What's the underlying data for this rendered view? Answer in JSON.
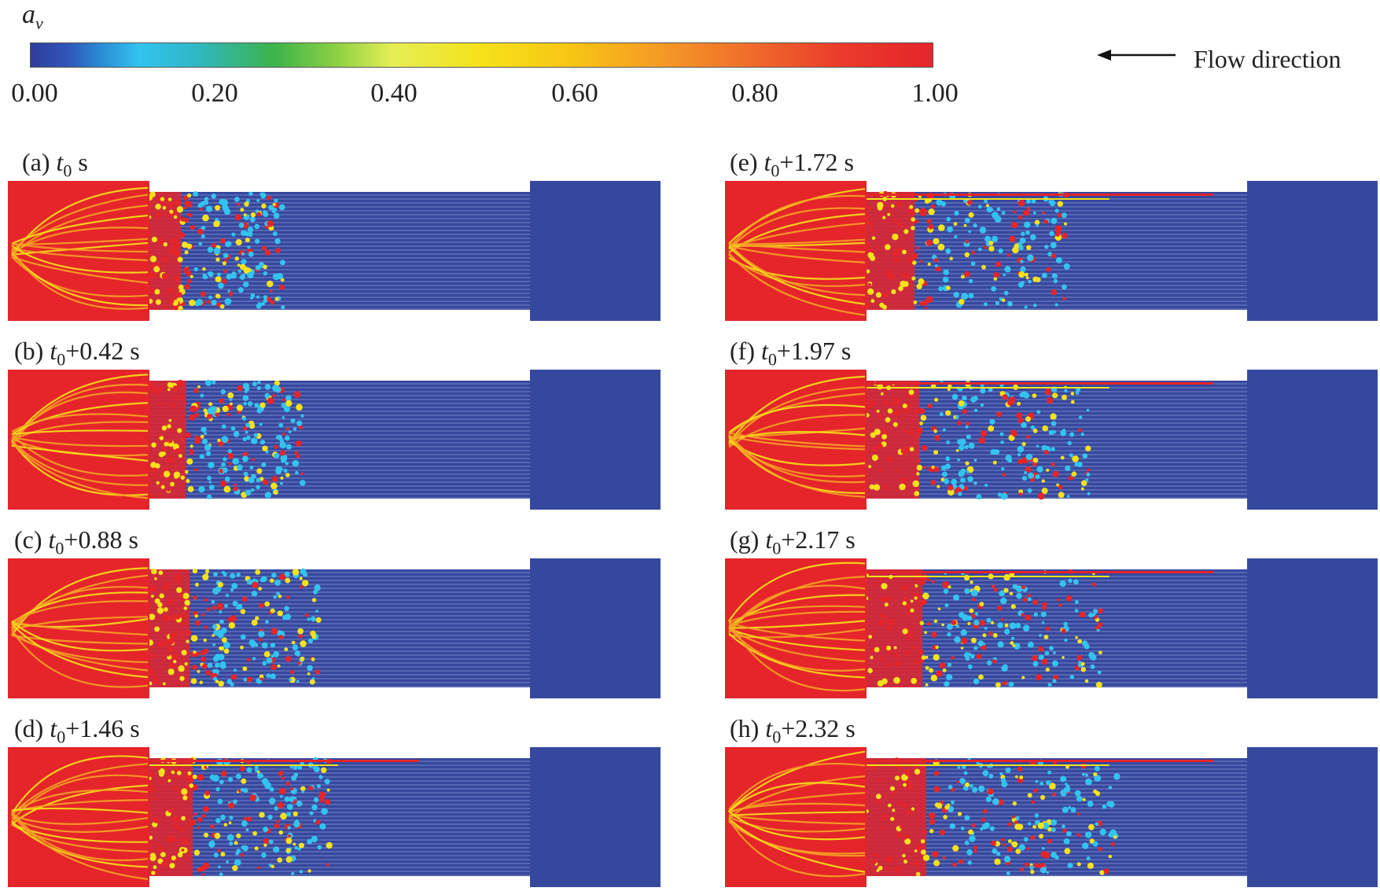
{
  "colorbar": {
    "variable": "a",
    "subscript": "v",
    "ticks": [
      "0.00",
      "0.20",
      "0.40",
      "0.60",
      "0.80",
      "1.00"
    ],
    "tick_values": [
      0.0,
      0.2,
      0.4,
      0.6,
      0.8,
      1.0
    ],
    "range": [
      0.0,
      1.0
    ]
  },
  "flow": {
    "label": "Flow direction",
    "arrow": "left-arrow-icon"
  },
  "colors": {
    "vapor": "#e5252a",
    "liquid": "#36489e",
    "mid": "#f5e21a",
    "cyan": "#33c3ef"
  },
  "panels": [
    {
      "id": "a",
      "prefix": "(a) ",
      "time": "t",
      "sub": "0",
      "suffix": " s",
      "front": 0.33
    },
    {
      "id": "b",
      "prefix": "(b) ",
      "time": "t",
      "sub": "0",
      "suffix": "+0.42 s",
      "front": 0.38
    },
    {
      "id": "c",
      "prefix": "(c) ",
      "time": "t",
      "sub": "0",
      "suffix": "+0.88 s",
      "front": 0.42
    },
    {
      "id": "d",
      "prefix": "(d) ",
      "time": "t",
      "sub": "0",
      "suffix": "+1.46 s",
      "front": 0.45
    },
    {
      "id": "e",
      "prefix": "(e) ",
      "time": "t",
      "sub": "0",
      "suffix": "+1.72 s",
      "front": 0.5
    },
    {
      "id": "f",
      "prefix": "(f) ",
      "time": "t",
      "sub": "0",
      "suffix": "+1.97 s",
      "front": 0.55
    },
    {
      "id": "g",
      "prefix": "(g) ",
      "time": "t",
      "sub": "0",
      "suffix": "+2.17 s",
      "front": 0.58
    },
    {
      "id": "h",
      "prefix": "(h) ",
      "time": "t",
      "sub": "0",
      "suffix": "+2.32 s",
      "front": 0.62
    }
  ]
}
